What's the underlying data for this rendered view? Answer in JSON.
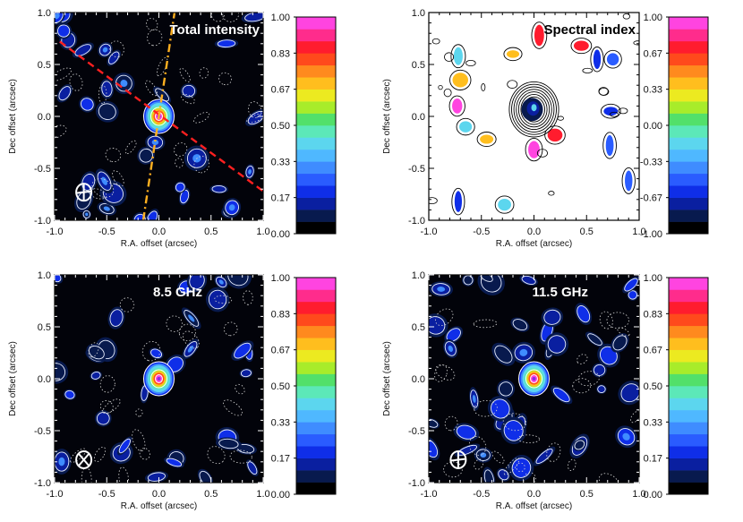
{
  "colorbar_colors": [
    "#000000",
    "#081a4e",
    "#0a1fa0",
    "#0f2ee8",
    "#2a5cff",
    "#3f8cff",
    "#4fb8ff",
    "#5cd6ee",
    "#5ce8b8",
    "#52e06a",
    "#a8ec2a",
    "#ecea20",
    "#ffbe1e",
    "#ff8a1e",
    "#ff4a1c",
    "#ff1c2e",
    "#ff2c8c",
    "#ff44e0"
  ],
  "chart_data": [
    {
      "type": "heatmap",
      "id": "total-intensity",
      "title": "Total intensity",
      "title_color": "#ffffff",
      "xlabel": "R.A. offset (arcsec)",
      "ylabel": "Dec offset (arcsec)",
      "xlim": [
        -1.0,
        1.0
      ],
      "ylim": [
        -1.0,
        1.0
      ],
      "xticks": [
        "-1.0",
        "-0.5",
        "0.0",
        "0.5",
        "1.0"
      ],
      "yticks": [
        "1.0",
        "0.5",
        "0.0",
        "-0.5",
        "-1.0"
      ],
      "colorbar": {
        "range": [
          0.0,
          1.0
        ],
        "labels": [
          "1.00",
          "0.83",
          "0.67",
          "0.50",
          "0.33",
          "0.17",
          "0.00"
        ]
      },
      "source": {
        "x": 0.0,
        "y": 0.0,
        "peak": 1.0
      },
      "lines": [
        {
          "name": "red-dashed-line",
          "color": "#ff2020",
          "from": [
            -0.95,
            0.72
          ],
          "to": [
            1.0,
            -0.72
          ]
        },
        {
          "name": "orange-dashdot-line",
          "color": "#ffb020",
          "from": [
            -0.15,
            -1.0
          ],
          "to": [
            0.15,
            1.0
          ]
        }
      ],
      "beam": {
        "x": -0.72,
        "y": -0.73
      }
    },
    {
      "type": "heatmap",
      "id": "spectral-index",
      "title": "Spectral index",
      "title_color": "#000000",
      "xlabel": "R.A. offset (arcsec)",
      "ylabel": "Dec offset (arcsec)",
      "xlim": [
        -1.0,
        1.0
      ],
      "ylim": [
        -1.0,
        1.0
      ],
      "xticks": [
        "-1.0",
        "-0.5",
        "0.0",
        "0.5",
        "1.0"
      ],
      "yticks": [
        "1.0",
        "0.5",
        "0.0",
        "-0.5",
        "-1.0"
      ],
      "colorbar": {
        "range": [
          -1.0,
          1.0
        ],
        "labels": [
          "1.00",
          "0.67",
          "0.33",
          "0.00",
          "-0.33",
          "-0.67",
          "-1.00"
        ]
      },
      "source": {
        "x": 0.0,
        "y": 0.05
      }
    },
    {
      "type": "heatmap",
      "id": "8p5ghz",
      "title": "8.5 GHz",
      "title_color": "#ffffff",
      "xlabel": "R.A. offset (arcsec)",
      "ylabel": "Dec offset (arcsec)",
      "xlim": [
        -1.0,
        1.0
      ],
      "ylim": [
        -1.0,
        1.0
      ],
      "xticks": [
        "-1.0",
        "-0.5",
        "0.0",
        "0.5",
        "1.0"
      ],
      "yticks": [
        "1.0",
        "0.5",
        "0.0",
        "-0.5",
        "-1.0"
      ],
      "colorbar": {
        "range": [
          0.0,
          1.0
        ],
        "labels": [
          "1.00",
          "0.83",
          "0.67",
          "0.50",
          "0.33",
          "0.17",
          "0.00"
        ]
      },
      "source": {
        "x": 0.0,
        "y": 0.0,
        "peak": 1.0
      },
      "beam": {
        "x": -0.72,
        "y": -0.78
      }
    },
    {
      "type": "heatmap",
      "id": "11p5ghz",
      "title": "11.5 GHz",
      "title_color": "#ffffff",
      "xlabel": "R.A. offset (arcsec)",
      "ylabel": "Dec offset (arcsec)",
      "xlim": [
        -1.0,
        1.0
      ],
      "ylim": [
        -1.0,
        1.0
      ],
      "xticks": [
        "-1.0",
        "-0.5",
        "0.0",
        "0.5",
        "1.0"
      ],
      "yticks": [
        "1.0",
        "0.5",
        "0.0",
        "-0.5",
        "-1.0"
      ],
      "colorbar": {
        "range": [
          0.0,
          1.0
        ],
        "labels": [
          "1.00",
          "0.83",
          "0.67",
          "0.50",
          "0.33",
          "0.17",
          "0.00"
        ]
      },
      "source": {
        "x": 0.0,
        "y": 0.0,
        "peak": 1.0
      },
      "beam": {
        "x": -0.72,
        "y": -0.78
      }
    }
  ]
}
